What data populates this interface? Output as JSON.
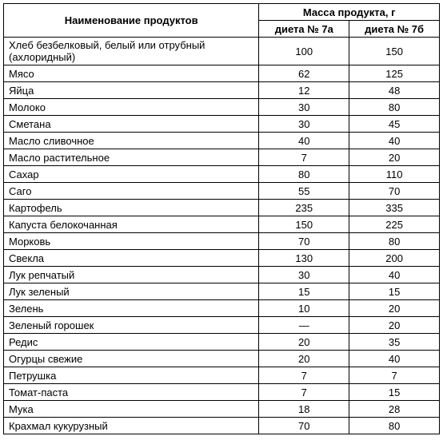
{
  "table": {
    "header": {
      "nameCol": "Наименование продуктов",
      "massCol": "Масса продукта, г",
      "diet7a": "диета № 7а",
      "diet7b": "диета № 7б"
    },
    "rows": [
      {
        "name": "Хлеб безбелковый, белый или отрубный (ахлоридный)",
        "a": "100",
        "b": "150"
      },
      {
        "name": "Мясо",
        "a": "62",
        "b": "125"
      },
      {
        "name": "Яйца",
        "a": "12",
        "b": "48"
      },
      {
        "name": "Молоко",
        "a": "30",
        "b": "80"
      },
      {
        "name": "Сметана",
        "a": "30",
        "b": "45"
      },
      {
        "name": "Масло сливочное",
        "a": "40",
        "b": "40"
      },
      {
        "name": "Масло растительное",
        "a": "7",
        "b": "20"
      },
      {
        "name": "Сахар",
        "a": "80",
        "b": "110"
      },
      {
        "name": "Саго",
        "a": "55",
        "b": "70"
      },
      {
        "name": "Картофель",
        "a": "235",
        "b": "335"
      },
      {
        "name": "Капуста белокочанная",
        "a": "150",
        "b": "225"
      },
      {
        "name": "Морковь",
        "a": "70",
        "b": "80"
      },
      {
        "name": "Свекла",
        "a": "130",
        "b": "200"
      },
      {
        "name": "Лук репчатый",
        "a": "30",
        "b": "40"
      },
      {
        "name": "Лук зеленый",
        "a": "15",
        "b": "15"
      },
      {
        "name": "Зелень",
        "a": "10",
        "b": "20"
      },
      {
        "name": "Зеленый горошек",
        "a": "—",
        "b": "20"
      },
      {
        "name": "Редис",
        "a": "20",
        "b": "35"
      },
      {
        "name": "Огурцы свежие",
        "a": "20",
        "b": "40"
      },
      {
        "name": "Петрушка",
        "a": "7",
        "b": "7"
      },
      {
        "name": "Томат-паста",
        "a": "7",
        "b": "15"
      },
      {
        "name": "Мука",
        "a": "18",
        "b": "28"
      },
      {
        "name": "Крахмал кукурузный",
        "a": "70",
        "b": "80"
      }
    ]
  }
}
